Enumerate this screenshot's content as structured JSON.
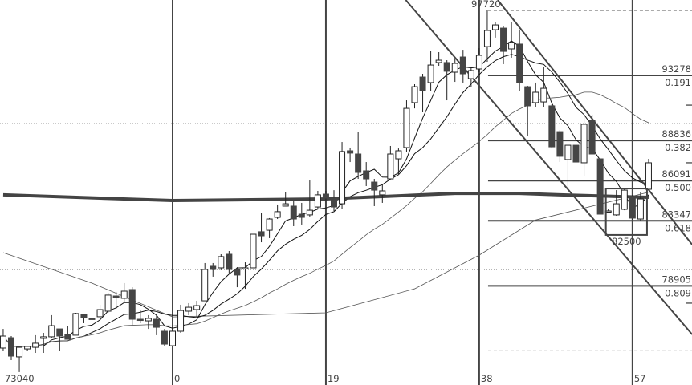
{
  "chart_data": {
    "type": "candlestick",
    "title": "",
    "x_tick_labels": [
      {
        "bar": -21,
        "label": "73040"
      },
      {
        "bar": 0,
        "label": "0"
      },
      {
        "bar": 19,
        "label": "19"
      },
      {
        "bar": 38,
        "label": "38"
      },
      {
        "bar": 57,
        "label": "57"
      }
    ],
    "vertical_lines_at_bars": [
      0,
      19,
      38,
      57
    ],
    "grid_prices": [
      90000,
      80000
    ],
    "first_bar": -21,
    "ohlc": [
      [
        74650,
        75960,
        74430,
        75470
      ],
      [
        75360,
        75470,
        73830,
        74100
      ],
      [
        74050,
        74700,
        73010,
        74700
      ],
      [
        74590,
        74760,
        74480,
        74760
      ],
      [
        74700,
        75530,
        74320,
        74980
      ],
      [
        75310,
        75690,
        74320,
        75420
      ],
      [
        75420,
        76900,
        75310,
        76180
      ],
      [
        75960,
        75960,
        74480,
        75470
      ],
      [
        75580,
        76130,
        75250,
        75250
      ],
      [
        75530,
        77060,
        75530,
        77010
      ],
      [
        76950,
        76950,
        76350,
        76730
      ],
      [
        76680,
        76900,
        75850,
        76620
      ],
      [
        76790,
        77610,
        76790,
        77280
      ],
      [
        77170,
        78430,
        77060,
        78270
      ],
      [
        78210,
        78490,
        77330,
        78100
      ],
      [
        78050,
        79090,
        77770,
        78540
      ],
      [
        78650,
        78810,
        76240,
        76620
      ],
      [
        76620,
        77220,
        76350,
        76570
      ],
      [
        76510,
        76900,
        75960,
        76680
      ],
      [
        76620,
        76900,
        75530,
        76070
      ],
      [
        75800,
        75960,
        74760,
        74920
      ],
      [
        74810,
        76070,
        74760,
        75800
      ],
      [
        75800,
        77610,
        75690,
        77220
      ],
      [
        77170,
        77720,
        76900,
        77440
      ],
      [
        77280,
        77880,
        76790,
        77550
      ],
      [
        77880,
        80460,
        77880,
        80020
      ],
      [
        80240,
        80460,
        79530,
        80020
      ],
      [
        80130,
        81060,
        79970,
        80900
      ],
      [
        81060,
        81280,
        79690,
        80020
      ],
      [
        80020,
        80180,
        78810,
        79640
      ],
      [
        80070,
        80510,
        78700,
        80130
      ],
      [
        80130,
        82430,
        80130,
        82430
      ],
      [
        82600,
        83860,
        81880,
        82320
      ],
      [
        82700,
        83530,
        82160,
        83470
      ],
      [
        83580,
        84460,
        83470,
        83970
      ],
      [
        84350,
        85330,
        84350,
        84510
      ],
      [
        84350,
        84680,
        82980,
        83470
      ],
      [
        83800,
        84570,
        83090,
        83580
      ],
      [
        83750,
        86100,
        83640,
        84070
      ],
      [
        84290,
        85390,
        84180,
        85120
      ],
      [
        85170,
        85390,
        84730,
        84900
      ],
      [
        84900,
        85440,
        84020,
        84290
      ],
      [
        84510,
        88730,
        84180,
        88080
      ],
      [
        88130,
        88350,
        87360,
        87970
      ],
      [
        87910,
        89390,
        86210,
        86650
      ],
      [
        86760,
        87360,
        85720,
        86210
      ],
      [
        85990,
        86210,
        84350,
        85440
      ],
      [
        85120,
        85830,
        84570,
        85390
      ],
      [
        86210,
        88460,
        86210,
        87910
      ],
      [
        87580,
        88290,
        86540,
        88130
      ],
      [
        88350,
        91580,
        88020,
        91030
      ],
      [
        91420,
        92680,
        91030,
        92510
      ],
      [
        93170,
        93390,
        90760,
        92240
      ],
      [
        92790,
        94980,
        92240,
        93990
      ],
      [
        94160,
        94870,
        93940,
        94320
      ],
      [
        94160,
        94320,
        91580,
        93560
      ],
      [
        93500,
        94430,
        92840,
        94100
      ],
      [
        94540,
        95030,
        92790,
        93390
      ],
      [
        93060,
        93770,
        92510,
        93610
      ],
      [
        93720,
        95140,
        93500,
        94650
      ],
      [
        95250,
        97720,
        94210,
        96350
      ],
      [
        96400,
        96950,
        95860,
        96730
      ],
      [
        96510,
        96620,
        94050,
        94920
      ],
      [
        95090,
        96950,
        94490,
        95530
      ],
      [
        95420,
        96400,
        92240,
        92790
      ],
      [
        92510,
        92570,
        89120,
        91200
      ],
      [
        91420,
        92790,
        91140,
        92130
      ],
      [
        91470,
        93880,
        91140,
        92400
      ],
      [
        91200,
        91310,
        88290,
        88400
      ],
      [
        89440,
        89550,
        87360,
        87750
      ],
      [
        87530,
        88510,
        85550,
        88510
      ],
      [
        88510,
        89120,
        87030,
        87360
      ],
      [
        87310,
        90490,
        86380,
        89940
      ],
      [
        90210,
        90600,
        87910,
        87910
      ],
      [
        87580,
        87580,
        83800,
        83800
      ],
      [
        84020,
        84130,
        83970,
        84020
      ],
      [
        83750,
        85440,
        83690,
        84510
      ],
      [
        84130,
        85550,
        84070,
        85440
      ],
      [
        85010,
        85120,
        83420,
        83530
      ],
      [
        83470,
        85280,
        83310,
        84840
      ],
      [
        85500,
        87580,
        85500,
        87310
      ]
    ],
    "long_ma": [
      {
        "bar": -21,
        "price": 85120
      },
      {
        "bar": 0,
        "price": 84730
      },
      {
        "bar": 19,
        "price": 84840
      },
      {
        "bar": 35,
        "price": 85220
      },
      {
        "bar": 43,
        "price": 85220
      },
      {
        "bar": 48,
        "price": 85120
      },
      {
        "bar": 59,
        "price": 84950
      }
    ],
    "long_thin_ma": [
      {
        "bar": -21,
        "price": 81170
      },
      {
        "bar": -10,
        "price": 79090
      },
      {
        "bar": 0,
        "price": 76780
      },
      {
        "bar": 19,
        "price": 77060
      },
      {
        "bar": 30,
        "price": 78700
      },
      {
        "bar": 38,
        "price": 81000
      },
      {
        "bar": 45,
        "price": 83400
      },
      {
        "bar": 59,
        "price": 85300
      }
    ],
    "fibonacci": {
      "high": 97720,
      "low": 74462,
      "start_bar": 39,
      "levels": [
        {
          "ratio": "0.191",
          "price": "93278"
        },
        {
          "ratio": "0.382",
          "price": "88836"
        },
        {
          "ratio": "0.500",
          "price": "86091"
        },
        {
          "ratio": "0.618",
          "price": "83347"
        },
        {
          "ratio": "0.809",
          "price": "78905"
        }
      ],
      "high_label": "97720"
    },
    "channel": [
      {
        "from": {
          "bar": 28.9,
          "price": 98432
        },
        "to": {
          "bar": 64.4,
          "price": 75580
        }
      },
      {
        "from": {
          "bar": 40.3,
          "price": 98432
        },
        "to": {
          "bar": 64.4,
          "price": 81720
        }
      }
    ],
    "box": {
      "from_bar": 53.7,
      "to_bar": 58.8,
      "top": 85550,
      "bottom": 82380,
      "label": "82500"
    },
    "price_ticks": [
      91250,
      87310,
      77720
    ],
    "colors": {
      "bear": "#454545",
      "bull": "#ffffff",
      "outline": "#222222",
      "lines": "#444444"
    }
  }
}
